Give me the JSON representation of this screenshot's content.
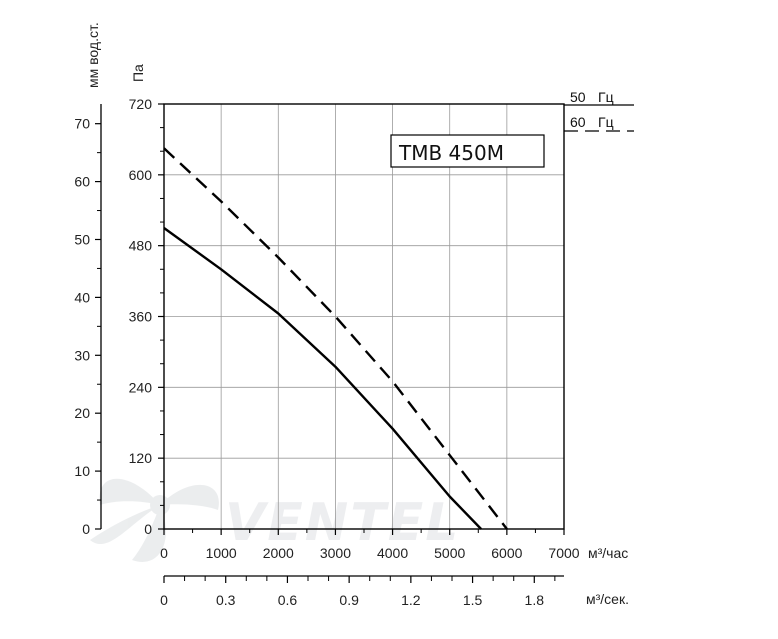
{
  "chart_data": {
    "type": "line",
    "title": "TMB 450M",
    "watermark": "VENTEL",
    "x_label_flow_hour": "м³/час",
    "x_label_flow_sec": "м³/сек.",
    "y_label_pa": "Па",
    "y_label_mm": "мм вод.ст.",
    "xlim": [
      0,
      7000
    ],
    "ylim_pa": [
      0,
      720
    ],
    "ylim_mm": [
      0,
      73.4
    ],
    "x_ticks": [
      0,
      1000,
      2000,
      3000,
      4000,
      5000,
      6000,
      7000
    ],
    "x_tick_labels": [
      "0",
      "1000",
      "2000",
      "3000",
      "4000",
      "5000",
      "6000",
      "7000"
    ],
    "x2_ticks_flow_sec": [
      0,
      0.3,
      0.6,
      0.9,
      1.2,
      1.5,
      1.8
    ],
    "x2_tick_labels": [
      "0",
      "0.3",
      "0.6",
      "0.9",
      "1.2",
      "1.5",
      "1.8"
    ],
    "y_ticks_pa": [
      0,
      120,
      240,
      360,
      480,
      600,
      720
    ],
    "y_tick_labels_pa": [
      "0",
      "120",
      "240",
      "360",
      "480",
      "600",
      "720"
    ],
    "y_ticks_mm": [
      0,
      10,
      20,
      30,
      40,
      50,
      60,
      70
    ],
    "y_tick_labels_mm": [
      "0",
      "10",
      "20",
      "30",
      "40",
      "50",
      "60",
      "70"
    ],
    "grid": true,
    "legend_position": "top-right",
    "series": [
      {
        "name": "50 Гц",
        "style": "solid",
        "color": "#000000",
        "x": [
          0,
          1000,
          2000,
          3000,
          4000,
          5000,
          5550
        ],
        "y": [
          510,
          440,
          365,
          275,
          170,
          55,
          0
        ]
      },
      {
        "name": "60 Гц",
        "style": "dashed",
        "color": "#000000",
        "x": [
          0,
          1000,
          2000,
          3000,
          4000,
          5000,
          6000
        ],
        "y": [
          645,
          555,
          460,
          360,
          250,
          125,
          0
        ]
      }
    ],
    "legend": [
      {
        "freq": "50",
        "unit": "Гц",
        "style": "solid"
      },
      {
        "freq": "60",
        "unit": "Гц",
        "style": "dashed"
      }
    ]
  }
}
